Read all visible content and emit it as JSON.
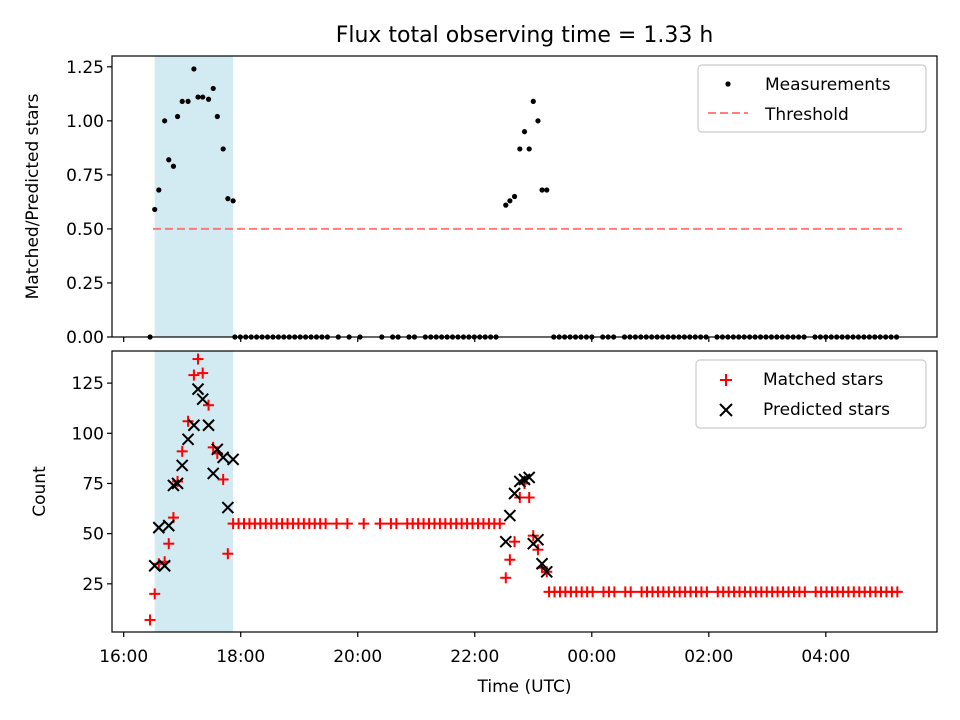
{
  "chart_data": {
    "type": "scatter",
    "title": "Flux total observing time = 1.33 h",
    "shaded_interval_hours": [
      16.53,
      17.87
    ],
    "colors": {
      "shade": "#add8e6",
      "threshold": "#ff6666",
      "matched": "#ff0000",
      "predicted": "#000000"
    },
    "x_axis": {
      "label": "Time (UTC)",
      "range_hours": [
        15.8,
        29.9
      ],
      "ticks": [
        {
          "hour": 16,
          "label": "16:00"
        },
        {
          "hour": 18,
          "label": "18:00"
        },
        {
          "hour": 20,
          "label": "20:00"
        },
        {
          "hour": 22,
          "label": "22:00"
        },
        {
          "hour": 24,
          "label": "00:00"
        },
        {
          "hour": 26,
          "label": "02:00"
        },
        {
          "hour": 28,
          "label": "04:00"
        }
      ]
    },
    "top_panel": {
      "ylabel": "Matched/Predicted stars",
      "ylim": [
        0,
        1.3
      ],
      "yticks": [
        0,
        0.25,
        0.5,
        0.75,
        1.0,
        1.25
      ],
      "ytick_labels": [
        "0.00",
        "0.25",
        "0.50",
        "0.75",
        "1.00",
        "1.25"
      ],
      "legend": {
        "measurements": "Measurements",
        "threshold": "Threshold"
      },
      "threshold": {
        "value": 0.5,
        "x_start": 16.5,
        "x_end": 29.3
      },
      "measurements": {
        "segments": [
          {
            "x": [
              16.45,
              16.53,
              16.6,
              16.7,
              16.77,
              16.85,
              16.92,
              17.0,
              17.1,
              17.2,
              17.27,
              17.35,
              17.45,
              17.53,
              17.6,
              17.7,
              17.78,
              17.87
            ],
            "y": [
              0,
              0.59,
              0.68,
              1.0,
              0.82,
              0.79,
              1.02,
              1.09,
              1.09,
              1.24,
              1.11,
              1.11,
              1.1,
              1.15,
              1.02,
              0.87,
              0.64,
              0.63
            ]
          },
          {
            "x_start": 17.9,
            "x_end": 22.45,
            "step": 0.093,
            "y": 0,
            "skip_ranges": [
              [
                19.52,
                19.62
              ],
              [
                19.72,
                19.82
              ],
              [
                19.88,
                20.02
              ],
              [
                20.12,
                20.32
              ],
              [
                20.42,
                20.52
              ],
              [
                20.72,
                20.82
              ],
              [
                21.05,
                21.12
              ]
            ]
          },
          {
            "x": [
              22.53,
              22.6,
              22.68,
              22.77,
              22.85,
              22.93,
              23.0,
              23.08,
              23.15,
              23.23
            ],
            "y": [
              0.61,
              0.63,
              0.65,
              0.87,
              0.95,
              0.87,
              1.09,
              1.0,
              0.68,
              0.68
            ]
          },
          {
            "x_start": 23.35,
            "x_end": 29.3,
            "step": 0.093,
            "y": 0,
            "skip_ranges": [
              [
                24.05,
                24.12
              ],
              [
                24.4,
                24.5
              ],
              [
                24.75,
                24.82
              ],
              [
                26.0,
                26.1
              ],
              [
                27.7,
                27.8
              ]
            ]
          }
        ]
      }
    },
    "bottom_panel": {
      "ylabel": "Count",
      "ylim": [
        1,
        141
      ],
      "yticks": [
        25,
        50,
        75,
        100,
        125
      ],
      "ytick_labels": [
        "25",
        "50",
        "75",
        "100",
        "125"
      ],
      "legend": {
        "matched": "Matched stars",
        "predicted": "Predicted stars"
      },
      "matched": {
        "segments": [
          {
            "x": [
              16.45,
              16.53,
              16.6,
              16.7,
              16.77,
              16.85,
              16.92,
              17.0,
              17.1,
              17.2,
              17.27,
              17.35,
              17.45,
              17.53,
              17.6,
              17.7,
              17.78
            ],
            "y": [
              7,
              20,
              35,
              36,
              45,
              58,
              76,
              91,
              106,
              129,
              137,
              130,
              114,
              93,
              90,
              77,
              40
            ]
          },
          {
            "x_start": 17.87,
            "x_end": 22.45,
            "step": 0.093,
            "y": 55,
            "skip_ranges": [
              [
                19.52,
                19.62
              ],
              [
                19.72,
                19.82
              ],
              [
                19.88,
                20.02
              ],
              [
                20.12,
                20.32
              ],
              [
                20.42,
                20.52
              ],
              [
                20.72,
                20.82
              ],
              [
                21.05,
                21.12
              ]
            ]
          },
          {
            "x": [
              22.53,
              22.6,
              22.68,
              22.77,
              22.85,
              22.93,
              23.0,
              23.08,
              23.15,
              23.23
            ],
            "y": [
              28,
              37,
              46,
              68,
              75,
              68,
              49,
              42,
              33,
              31
            ]
          },
          {
            "x_start": 23.27,
            "x_end": 29.3,
            "step": 0.093,
            "y": 21,
            "skip_ranges": [
              [
                24.05,
                24.12
              ],
              [
                24.4,
                24.5
              ],
              [
                24.75,
                24.82
              ],
              [
                26.0,
                26.1
              ],
              [
                27.7,
                27.8
              ]
            ]
          }
        ]
      },
      "predicted": {
        "x": [
          16.53,
          16.6,
          16.7,
          16.77,
          16.85,
          16.92,
          17.0,
          17.1,
          17.2,
          17.27,
          17.35,
          17.45,
          17.53,
          17.6,
          17.7,
          17.78,
          17.87,
          22.53,
          22.6,
          22.68,
          22.77,
          22.85,
          22.93,
          23.0,
          23.08,
          23.15,
          23.23
        ],
        "y": [
          34,
          53,
          34,
          54,
          74,
          75,
          84,
          97,
          104,
          122,
          117,
          104,
          80,
          92,
          88,
          63,
          87,
          46,
          59,
          70,
          76,
          77,
          78,
          45,
          47,
          35,
          31
        ]
      }
    }
  }
}
